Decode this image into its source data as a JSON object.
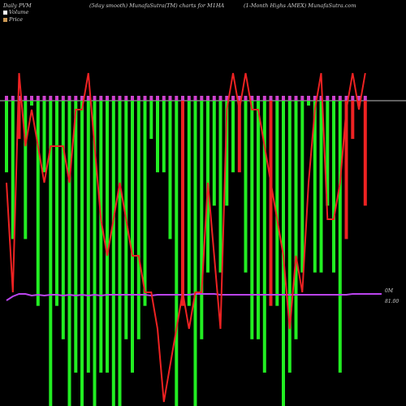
{
  "header": {
    "left": "Daily PVM",
    "center": "(5day smooth) MunafaSutra(TM) charts for M1HA",
    "right": "(1-Month Highs AMEX) MunafaSutra.com"
  },
  "colors": {
    "background": "#000000",
    "volume_up": "#22ee22",
    "volume_down": "#ee2222",
    "price_line": "#ee2222",
    "pvm_line": "#bb44ee",
    "top_markers": "#cc44cc",
    "swatch_volume": "#ffffff",
    "swatch_price": "#cc9955"
  },
  "chart_data": {
    "type": "bar",
    "legend": [
      {
        "label": "Volume"
      },
      {
        "label": "Price"
      }
    ],
    "axis_labels": {
      "volume_zero": "0M",
      "price_level": "81.00"
    },
    "n": 58,
    "volume": [
      2,
      4,
      1,
      4,
      0,
      6,
      2,
      9,
      6,
      7,
      9,
      8,
      9,
      8,
      9,
      8,
      8,
      9,
      9,
      7,
      8,
      7,
      6,
      1,
      2,
      2,
      4,
      9,
      6,
      6,
      9,
      7,
      5,
      3,
      5,
      3,
      2,
      2,
      5,
      7,
      7,
      8,
      6,
      6,
      9,
      8,
      7,
      5,
      0,
      5,
      5,
      3,
      5,
      8,
      4,
      1,
      0,
      3
    ],
    "direction": [
      "g",
      "g",
      "r",
      "g",
      "g",
      "g",
      "g",
      "g",
      "g",
      "g",
      "g",
      "g",
      "g",
      "g",
      "g",
      "g",
      "g",
      "g",
      "g",
      "g",
      "g",
      "g",
      "g",
      "g",
      "g",
      "g",
      "g",
      "g",
      "r",
      "g",
      "g",
      "g",
      "g",
      "g",
      "g",
      "g",
      "g",
      "r",
      "g",
      "g",
      "g",
      "g",
      "r",
      "g",
      "g",
      "g",
      "g",
      "g",
      "g",
      "g",
      "g",
      "g",
      "g",
      "g",
      "r",
      "r",
      "r",
      "r"
    ],
    "price": [
      6,
      3,
      9,
      7,
      8,
      7,
      6,
      7,
      7,
      7,
      6,
      8,
      8,
      9,
      7,
      5,
      4,
      5,
      6,
      5,
      4,
      4,
      3,
      3,
      2,
      0,
      1,
      2,
      3,
      2,
      3,
      3,
      6,
      4,
      2,
      8,
      9,
      8,
      9,
      8,
      8,
      7,
      6,
      5,
      4,
      2,
      4,
      3,
      6,
      8,
      9,
      5,
      5,
      6,
      8,
      9,
      8,
      9
    ]
  }
}
